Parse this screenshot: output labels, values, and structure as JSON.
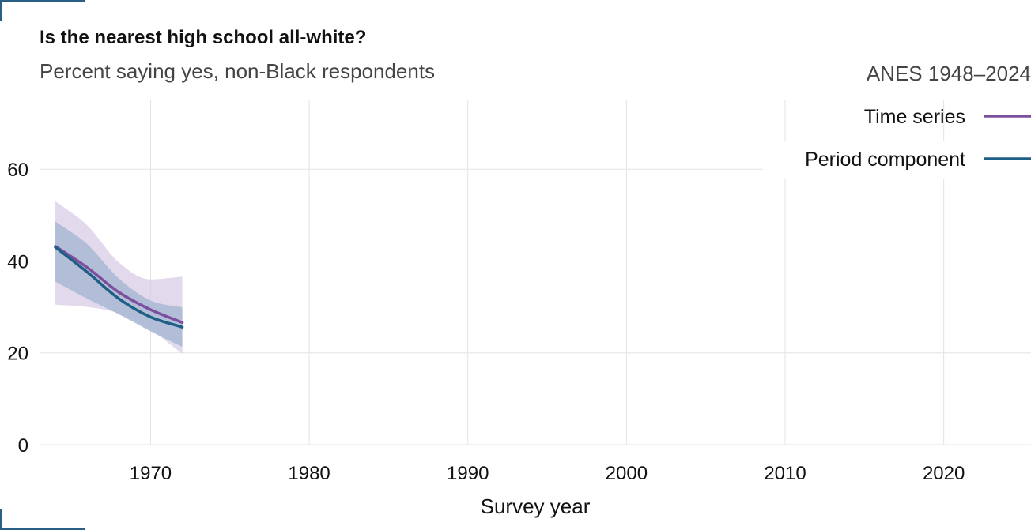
{
  "header": {
    "title": "Is the nearest high school all-white?",
    "subtitle": "Percent saying yes, non-Black respondents",
    "source": "ANES 1948–2024"
  },
  "colors": {
    "time_series": "#7b4f9e",
    "period_component": "#1f5f86",
    "time_series_band": "#d9cce6",
    "period_component_band": "#a9b7d3",
    "grid": "#e3e3e3"
  },
  "chart_data": {
    "type": "line",
    "title": "Is the nearest high school all-white?",
    "subtitle": "Percent saying yes, non-Black respondents",
    "xlabel": "Survey year",
    "ylabel": "",
    "xlim": [
      1963,
      2025.5
    ],
    "ylim": [
      0,
      75
    ],
    "x_ticks": [
      1970,
      1980,
      1990,
      2000,
      2010,
      2020
    ],
    "y_ticks": [
      0,
      20,
      40,
      60
    ],
    "grid": true,
    "legend_position": "top-right",
    "series": [
      {
        "name": "Time series",
        "color": "#7b4f9e",
        "x": [
          1964,
          1966,
          1968,
          1970,
          1972
        ],
        "y": [
          43.2,
          38.6,
          33.2,
          29.4,
          26.6
        ],
        "lower": [
          30.5,
          30.0,
          28.6,
          25.0,
          19.8
        ],
        "upper": [
          53.0,
          47.8,
          39.7,
          36.0,
          36.6
        ]
      },
      {
        "name": "Period component",
        "color": "#1f5f86",
        "x": [
          1964,
          1966,
          1968,
          1970,
          1972
        ],
        "y": [
          43.0,
          37.6,
          31.8,
          27.8,
          25.6
        ],
        "lower": [
          35.5,
          31.8,
          28.4,
          24.7,
          21.3
        ],
        "upper": [
          48.6,
          43.7,
          36.2,
          31.4,
          29.9
        ]
      }
    ]
  }
}
